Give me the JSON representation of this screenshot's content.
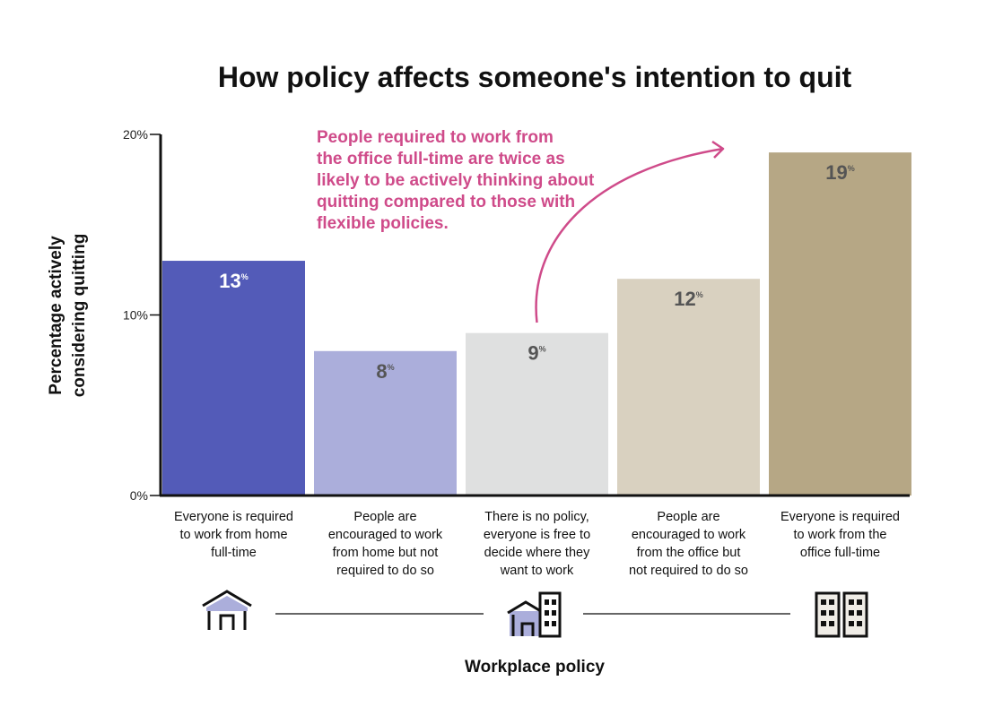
{
  "chart_data": {
    "type": "bar",
    "title": "How policy affects someone's intention to quit",
    "xlabel": "Workplace policy",
    "ylabel_lines": [
      "Percentage actively",
      "considering quitting"
    ],
    "ylim": [
      0,
      20
    ],
    "yticks": [
      {
        "value": 0,
        "label": "0%"
      },
      {
        "value": 10,
        "label": "10%"
      },
      {
        "value": 20,
        "label": "20%"
      }
    ],
    "grid": false,
    "categories": [
      {
        "label_lines": [
          "Everyone is required",
          "to work from home",
          "full-time"
        ]
      },
      {
        "label_lines": [
          "People are",
          "encouraged to work",
          "from home but not",
          "required to do so"
        ]
      },
      {
        "label_lines": [
          "There is no policy,",
          "everyone is free to",
          "decide where they",
          "want to work"
        ]
      },
      {
        "label_lines": [
          "People are",
          "encouraged to work",
          "from the office but",
          "not required to do so"
        ]
      },
      {
        "label_lines": [
          "Everyone is required",
          "to work from the",
          "office full-time"
        ]
      }
    ],
    "values": [
      13,
      8,
      9,
      12,
      19
    ],
    "value_labels": [
      "13",
      "8",
      "9",
      "12",
      "19"
    ],
    "value_suffix": "%",
    "colors": [
      "#535bb8",
      "#abaedb",
      "#dfe0e0",
      "#d9d1c0",
      "#b6a785"
    ],
    "value_label_colors": [
      "#ffffff",
      "#555555",
      "#555555",
      "#555555",
      "#555555"
    ],
    "annotation": {
      "lines": [
        "People required to work from",
        "the office full-time are twice as",
        "likely to be actively thinking about",
        "quitting compared to those with",
        "flexible policies."
      ],
      "color": "#cf4b8a",
      "from_category": 2,
      "to_category": 4
    },
    "icons": [
      "house-icon",
      "house-and-office-icon",
      "office-buildings-icon"
    ]
  }
}
